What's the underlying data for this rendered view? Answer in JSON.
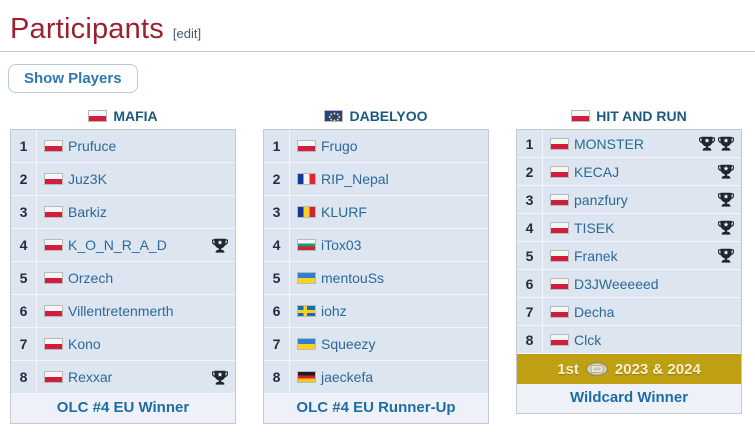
{
  "page": {
    "title": "Participants",
    "edit_label": "[edit]",
    "show_players_button": "Show Players"
  },
  "colors": {
    "heading_red": "#9c2130",
    "link_blue": "#2b6997",
    "team_header_blue": "#1b5a80",
    "row_bg": "#dde6f0",
    "footer_bg": "#eef2f8",
    "footer_text": "#1d6ca3",
    "gold_bg": "#bfa013",
    "gold_text": "#f9f2cd",
    "trophy_dark": "#20262e"
  },
  "icons": {
    "tournament_win": "trophy-icon",
    "first_place_badge": "medal-icon"
  },
  "teams": [
    {
      "name": "MAFIA",
      "flag": "poland",
      "players": [
        {
          "no": "1",
          "flag": "poland",
          "name": "Prufuce",
          "trophies": 0
        },
        {
          "no": "2",
          "flag": "poland",
          "name": "Juz3K",
          "trophies": 0
        },
        {
          "no": "3",
          "flag": "poland",
          "name": "Barkiz",
          "trophies": 0
        },
        {
          "no": "4",
          "flag": "poland",
          "name": "K_O_N_R_A_D",
          "trophies": 1
        },
        {
          "no": "5",
          "flag": "poland",
          "name": "Orzech",
          "trophies": 0
        },
        {
          "no": "6",
          "flag": "poland",
          "name": "Villentretenmerth",
          "trophies": 0
        },
        {
          "no": "7",
          "flag": "poland",
          "name": "Kono",
          "trophies": 0
        },
        {
          "no": "8",
          "flag": "poland",
          "name": "Rexxar",
          "trophies": 1
        }
      ],
      "footer": "OLC #4 EU Winner"
    },
    {
      "name": "DABELYOO",
      "flag": "european-union",
      "players": [
        {
          "no": "1",
          "flag": "poland",
          "name": "Frugo",
          "trophies": 0
        },
        {
          "no": "2",
          "flag": "france",
          "name": "RIP_Nepal",
          "trophies": 0
        },
        {
          "no": "3",
          "flag": "romania",
          "name": "KLURF",
          "trophies": 0
        },
        {
          "no": "4",
          "flag": "bulgaria",
          "name": "iTox03",
          "trophies": 0
        },
        {
          "no": "5",
          "flag": "ukraine",
          "name": "mentouSs",
          "trophies": 0
        },
        {
          "no": "6",
          "flag": "sweden",
          "name": "iohz",
          "trophies": 0
        },
        {
          "no": "7",
          "flag": "ukraine",
          "name": "Squeezy",
          "trophies": 0
        },
        {
          "no": "8",
          "flag": "germany",
          "name": "jaeckefa",
          "trophies": 0
        }
      ],
      "footer": "OLC #4 EU Runner-Up"
    },
    {
      "name": "HIT AND RUN",
      "flag": "poland",
      "players": [
        {
          "no": "1",
          "flag": "poland",
          "name": "MONSTER",
          "trophies": 2
        },
        {
          "no": "2",
          "flag": "poland",
          "name": "KECAJ",
          "trophies": 1
        },
        {
          "no": "3",
          "flag": "poland",
          "name": "panzfury",
          "trophies": 1
        },
        {
          "no": "4",
          "flag": "poland",
          "name": "TISEK",
          "trophies": 1
        },
        {
          "no": "5",
          "flag": "poland",
          "name": "Franek",
          "trophies": 1
        },
        {
          "no": "6",
          "flag": "poland",
          "name": "D3JWeeeeed",
          "trophies": 0
        },
        {
          "no": "7",
          "flag": "poland",
          "name": "Decha",
          "trophies": 0
        },
        {
          "no": "8",
          "flag": "poland",
          "name": "Clck",
          "trophies": 0
        }
      ],
      "achievement": {
        "prefix": "1st",
        "suffix": "2023 & 2024"
      },
      "footer": "Wildcard Winner"
    }
  ]
}
